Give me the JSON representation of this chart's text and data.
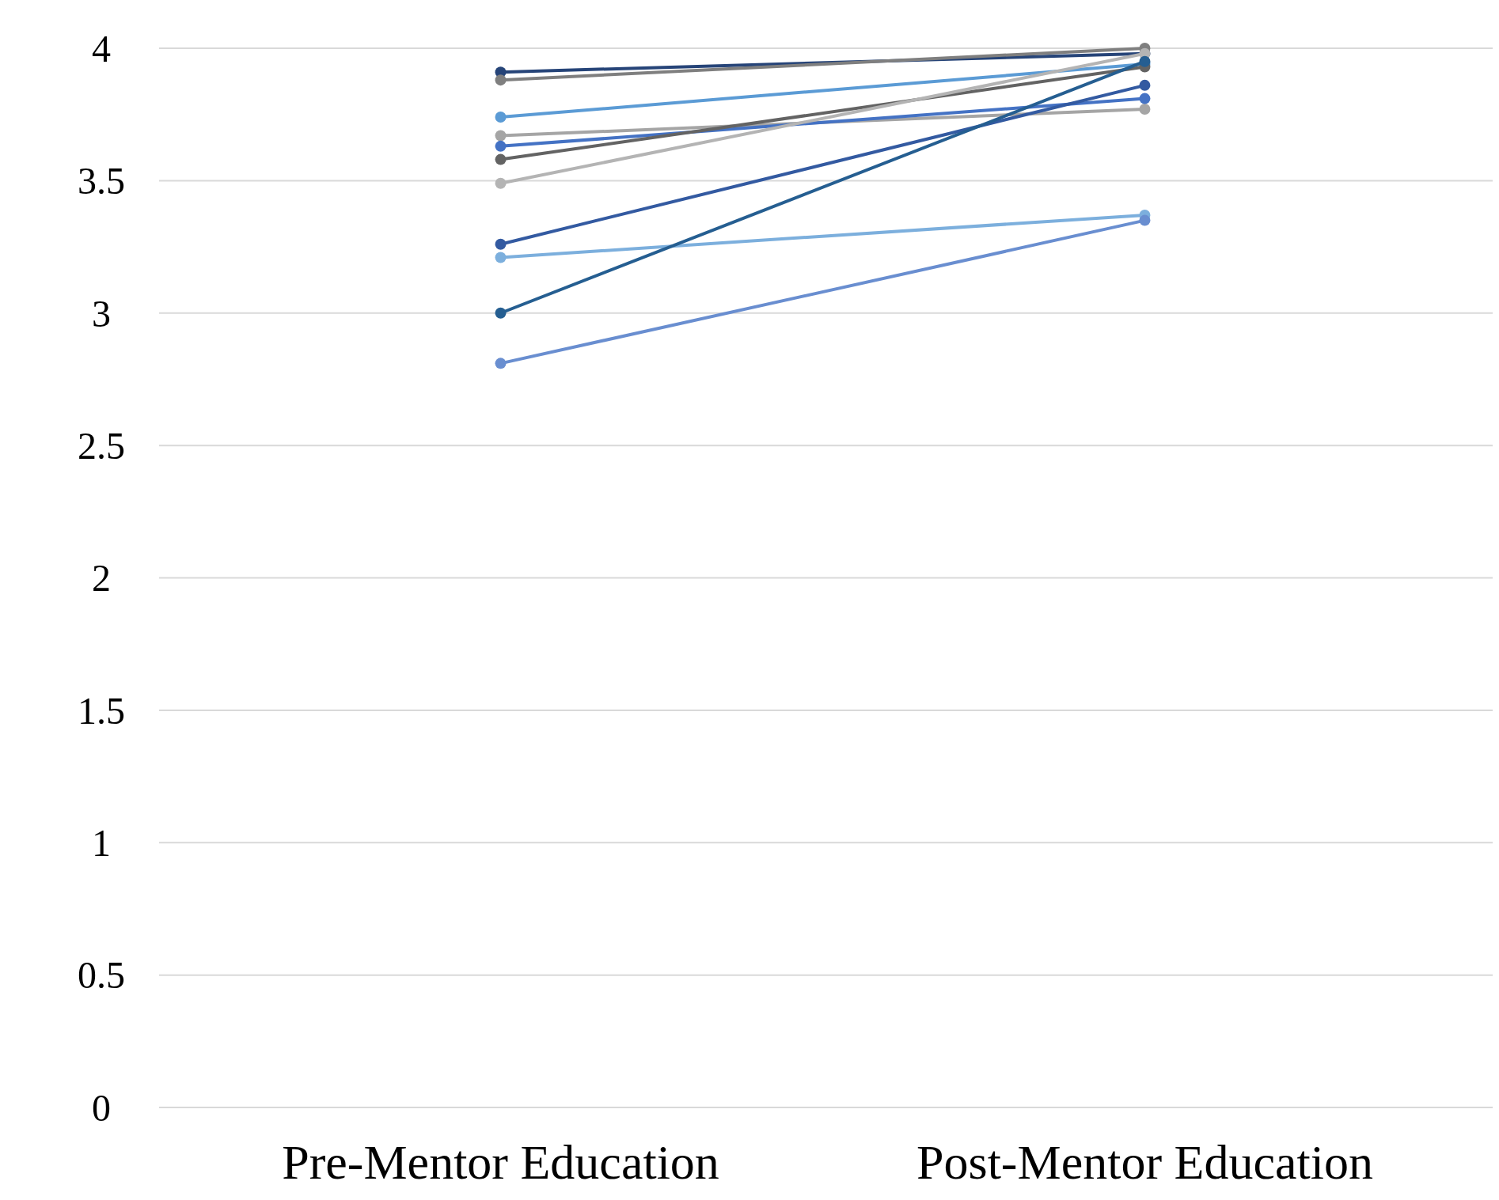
{
  "chart_data": {
    "type": "line",
    "categories": [
      "Pre-Mentor Education",
      "Post-Mentor Education"
    ],
    "series": [
      {
        "color": "#264478",
        "values": [
          3.91,
          3.98
        ]
      },
      {
        "color": "#7f7f7f",
        "values": [
          3.88,
          4.0
        ]
      },
      {
        "color": "#5b9bd5",
        "values": [
          3.74,
          3.94
        ]
      },
      {
        "color": "#a5a5a5",
        "values": [
          3.67,
          3.77
        ]
      },
      {
        "color": "#4472c4",
        "values": [
          3.63,
          3.81
        ]
      },
      {
        "color": "#636363",
        "values": [
          3.58,
          3.93
        ]
      },
      {
        "color": "#b4b4b4",
        "values": [
          3.49,
          3.98
        ]
      },
      {
        "color": "#335aa1",
        "values": [
          3.26,
          3.86
        ]
      },
      {
        "color": "#7cafdd",
        "values": [
          3.21,
          3.37
        ]
      },
      {
        "color": "#255e91",
        "values": [
          3.0,
          3.95
        ]
      },
      {
        "color": "#698ed0",
        "values": [
          2.81,
          3.35
        ]
      }
    ],
    "ylim": [
      0,
      4
    ],
    "yticks": [
      0,
      0.5,
      1,
      1.5,
      2,
      2.5,
      3,
      3.5,
      4
    ],
    "grid": true,
    "marker": "circle",
    "line_style": "solid"
  }
}
